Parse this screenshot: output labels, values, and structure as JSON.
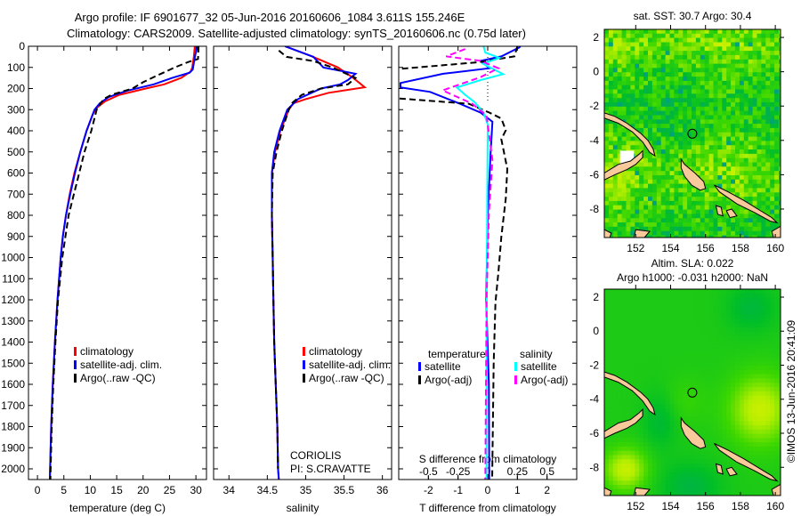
{
  "figure": {
    "title_line1": "Argo profile: IF 6901677_32 05-Jun-2016 20160606_1084 3.611S 155.246E",
    "title_line2": "Climatology: CARS2009. Satellite-adjusted climatology: synTS_20160606.nc (0.75d later)",
    "timestamp": "©IMOS 13-Jun-2016 20:41:09",
    "institution": "CORIOLIS",
    "pi": "PI: S.CRAVATTE"
  },
  "chart_data": [
    {
      "type": "line",
      "title": "",
      "xlabel": "temperature (deg C)",
      "ylabel": "",
      "xlim": [
        -1.7,
        32
      ],
      "ylim": [
        2050,
        0
      ],
      "xticks": [
        0,
        5,
        10,
        15,
        20,
        25,
        30
      ],
      "yticks": [
        0,
        100,
        200,
        300,
        400,
        500,
        600,
        700,
        800,
        900,
        1000,
        1100,
        1200,
        1300,
        1400,
        1500,
        1600,
        1700,
        1800,
        1900,
        2000
      ],
      "legend": [
        "climatology",
        "satellite-adj. clim.",
        "Argo(..raw -QC)"
      ],
      "series": [
        {
          "name": "climatology",
          "color": "#ff0000",
          "dash": "",
          "depth_value": [
            [
              0,
              29.8
            ],
            [
              50,
              29.6
            ],
            [
              100,
              29.3
            ],
            [
              120,
              29.0
            ],
            [
              150,
              27.2
            ],
            [
              180,
              24.0
            ],
            [
              200,
              20.5
            ],
            [
              230,
              15.5
            ],
            [
              260,
              12.8
            ],
            [
              290,
              11.3
            ],
            [
              320,
              10.5
            ],
            [
              400,
              9.3
            ],
            [
              500,
              8.1
            ],
            [
              600,
              7.0
            ],
            [
              700,
              6.1
            ],
            [
              800,
              5.4
            ],
            [
              900,
              4.8
            ],
            [
              1000,
              4.4
            ],
            [
              1200,
              3.8
            ],
            [
              1400,
              3.3
            ],
            [
              1600,
              2.9
            ],
            [
              1800,
              2.6
            ],
            [
              2000,
              2.4
            ],
            [
              2050,
              2.35
            ]
          ]
        },
        {
          "name": "satellite-adj. clim.",
          "color": "#0000ff",
          "dash": "",
          "depth_value": [
            [
              0,
              30.3
            ],
            [
              40,
              29.9
            ],
            [
              80,
              29.6
            ],
            [
              110,
              29.4
            ],
            [
              125,
              28.8
            ],
            [
              150,
              25.5
            ],
            [
              180,
              22.0
            ],
            [
              210,
              17.0
            ],
            [
              240,
              13.5
            ],
            [
              270,
              11.8
            ],
            [
              300,
              10.8
            ],
            [
              400,
              9.3
            ],
            [
              500,
              8.1
            ],
            [
              600,
              7.1
            ],
            [
              700,
              6.2
            ],
            [
              800,
              5.4
            ],
            [
              900,
              4.8
            ],
            [
              1000,
              4.4
            ],
            [
              1200,
              3.8
            ],
            [
              1400,
              3.3
            ],
            [
              1600,
              2.9
            ],
            [
              1800,
              2.6
            ],
            [
              2000,
              2.4
            ],
            [
              2050,
              2.35
            ]
          ]
        },
        {
          "name": "Argo(..raw -QC)",
          "color": "#000000",
          "dash": "7,4",
          "depth_value": [
            [
              0,
              30.5
            ],
            [
              60,
              30.4
            ],
            [
              75,
              28.5
            ],
            [
              100,
              26.0
            ],
            [
              140,
              22.5
            ],
            [
              170,
              20.0
            ],
            [
              200,
              18.0
            ],
            [
              230,
              14.0
            ],
            [
              250,
              12.5
            ],
            [
              300,
              11.2
            ],
            [
              400,
              10.2
            ],
            [
              500,
              8.9
            ],
            [
              600,
              7.9
            ],
            [
              700,
              6.9
            ],
            [
              800,
              5.9
            ],
            [
              900,
              5.3
            ],
            [
              1000,
              4.7
            ],
            [
              1200,
              3.9
            ],
            [
              1400,
              3.4
            ],
            [
              1600,
              3.0
            ],
            [
              1800,
              2.7
            ],
            [
              2000,
              2.5
            ],
            [
              2050,
              2.45
            ]
          ]
        }
      ]
    },
    {
      "type": "line",
      "title": "",
      "xlabel": "salinity",
      "xlim": [
        33.8,
        36.12
      ],
      "ylim": [
        2050,
        0
      ],
      "xticks": [
        34,
        34.5,
        35,
        35.5,
        36
      ],
      "yticks": [
        0,
        100,
        200,
        300,
        400,
        500,
        600,
        700,
        800,
        900,
        1000,
        1100,
        1200,
        1300,
        1400,
        1500,
        1600,
        1700,
        1800,
        1900,
        2000
      ],
      "legend": [
        "climatology",
        "satellite-adj. clim.",
        "Argo(..raw -QC)"
      ],
      "series": [
        {
          "name": "climatology",
          "color": "#ff0000",
          "dash": "",
          "depth_value": [
            [
              0,
              34.73
            ],
            [
              46,
              35.07
            ],
            [
              100,
              35.42
            ],
            [
              150,
              35.62
            ],
            [
              194,
              35.77
            ],
            [
              220,
              35.3
            ],
            [
              250,
              35.0
            ],
            [
              270,
              34.84
            ],
            [
              300,
              34.78
            ],
            [
              400,
              34.67
            ],
            [
              500,
              34.6
            ],
            [
              600,
              34.56
            ],
            [
              800,
              34.56
            ],
            [
              1000,
              34.57
            ],
            [
              1200,
              34.58
            ],
            [
              1400,
              34.59
            ],
            [
              1600,
              34.61
            ],
            [
              1800,
              34.63
            ],
            [
              2000,
              34.64
            ],
            [
              2050,
              34.65
            ]
          ]
        },
        {
          "name": "satellite-adj. clim.",
          "color": "#0000ff",
          "dash": "",
          "depth_value": [
            [
              0,
              34.73
            ],
            [
              50,
              35.1
            ],
            [
              100,
              35.23
            ],
            [
              130,
              35.65
            ],
            [
              160,
              35.55
            ],
            [
              180,
              35.45
            ],
            [
              200,
              35.2
            ],
            [
              250,
              34.9
            ],
            [
              300,
              34.76
            ],
            [
              400,
              34.66
            ],
            [
              500,
              34.59
            ],
            [
              600,
              34.56
            ],
            [
              800,
              34.56
            ],
            [
              1000,
              34.57
            ],
            [
              1200,
              34.58
            ],
            [
              1400,
              34.59
            ],
            [
              1600,
              34.61
            ],
            [
              1800,
              34.63
            ],
            [
              2000,
              34.64
            ],
            [
              2050,
              34.65
            ]
          ]
        },
        {
          "name": "Argo(..raw -QC)",
          "color": "#000000",
          "dash": "7,4",
          "depth_value": [
            [
              20,
              34.65
            ],
            [
              50,
              34.75
            ],
            [
              70,
              35.1
            ],
            [
              100,
              35.35
            ],
            [
              150,
              35.65
            ],
            [
              180,
              35.55
            ],
            [
              200,
              35.2
            ],
            [
              230,
              34.95
            ],
            [
              270,
              34.82
            ],
            [
              300,
              34.78
            ],
            [
              400,
              34.69
            ],
            [
              500,
              34.62
            ],
            [
              600,
              34.57
            ],
            [
              800,
              34.56
            ],
            [
              1000,
              34.57
            ],
            [
              1200,
              34.58
            ],
            [
              1400,
              34.59
            ],
            [
              1600,
              34.61
            ],
            [
              1800,
              34.63
            ],
            [
              2000,
              34.64
            ]
          ]
        }
      ]
    },
    {
      "type": "line",
      "xlabel": "T difference from climatology",
      "s_axis_label": "S difference from climatology",
      "xlim": [
        -3,
        3
      ],
      "s_xlim": [
        -0.75,
        0.75
      ],
      "ylim": [
        2050,
        0
      ],
      "xticks": [
        -2,
        -1,
        0,
        1,
        2
      ],
      "s_xticks": [
        -0.5,
        -0.25,
        0,
        0.25,
        0.5
      ],
      "yticks": [
        0,
        100,
        200,
        300,
        400,
        500,
        600,
        700,
        800,
        900,
        1000,
        1100,
        1200,
        1300,
        1400,
        1500,
        1600,
        1700,
        1800,
        1900,
        2000
      ],
      "legend_headers": [
        "temperature",
        "salinity"
      ],
      "legend": [
        "satellite",
        "Argo(-adj)",
        "satellite",
        "Argo(-adj)"
      ],
      "series": [
        {
          "name": "T satellite",
          "axis": "T",
          "color": "#0000ff",
          "dash": "",
          "depth_value": [
            [
              0,
              1.1
            ],
            [
              6,
              1.06
            ],
            [
              48,
              0.46
            ],
            [
              69,
              -0.24
            ],
            [
              104,
              0.06
            ],
            [
              130,
              -1.5
            ],
            [
              174,
              -2.94
            ],
            [
              195,
              -2.94
            ],
            [
              216,
              -1.94
            ],
            [
              272,
              -0.94
            ],
            [
              314,
              -0.24
            ],
            [
              357,
              0.16
            ],
            [
              500,
              0.1
            ],
            [
              800,
              0.0
            ],
            [
              1200,
              -0.05
            ],
            [
              1600,
              0.04
            ],
            [
              2050,
              0.05
            ]
          ]
        },
        {
          "name": "T Argo(-adj)",
          "axis": "T",
          "color": "#000000",
          "dash": "7,4",
          "depth_value": [
            [
              0,
              1.0
            ],
            [
              48,
              0.9
            ],
            [
              76,
              -0.34
            ],
            [
              111,
              -3.3
            ],
            [
              170,
              -3.5
            ],
            [
              244,
              -3.3
            ],
            [
              272,
              -0.64
            ],
            [
              314,
              0.06
            ],
            [
              342,
              0.46
            ],
            [
              398,
              0.61
            ],
            [
              440,
              0.46
            ],
            [
              580,
              0.66
            ],
            [
              720,
              0.61
            ],
            [
              902,
              0.46
            ],
            [
              1070,
              0.36
            ],
            [
              1211,
              0.26
            ],
            [
              1500,
              0.2
            ],
            [
              2050,
              0.15
            ]
          ]
        },
        {
          "name": "S satellite",
          "axis": "S",
          "color": "#00ffff",
          "dash": "",
          "depth_value": [
            [
              0,
              -0.035
            ],
            [
              30,
              -0.02
            ],
            [
              55,
              0.1
            ],
            [
              83,
              -0.04
            ],
            [
              132,
              0.13
            ],
            [
              160,
              -0.06
            ],
            [
              195,
              -0.26
            ],
            [
              230,
              -0.19
            ],
            [
              265,
              -0.11
            ],
            [
              314,
              -0.035
            ],
            [
              370,
              0.0
            ],
            [
              800,
              -0.005
            ],
            [
              1400,
              -0.01
            ],
            [
              2050,
              -0.01
            ]
          ]
        },
        {
          "name": "S Argo(-adj)",
          "axis": "S",
          "color": "#ff00ff",
          "dash": "7,4",
          "depth_value": [
            [
              13,
              -0.19
            ],
            [
              48,
              -0.35
            ],
            [
              69,
              -0.06
            ],
            [
              104,
              0.09
            ],
            [
              146,
              -0.06
            ],
            [
              209,
              -0.38
            ],
            [
              272,
              -0.13
            ],
            [
              328,
              -0.01
            ],
            [
              538,
              0.04
            ],
            [
              790,
              0.01
            ],
            [
              1200,
              -0.01
            ],
            [
              2050,
              -0.02
            ]
          ]
        }
      ]
    },
    {
      "type": "heatmap",
      "title": "sat. SST: 30.7 Argo: 30.4",
      "xlim": [
        150.2,
        160.3
      ],
      "ylim": [
        -9.66,
        2.47
      ],
      "xticks": [
        152,
        154,
        156,
        158,
        160
      ],
      "yticks": [
        2,
        0,
        -2,
        -4,
        -6,
        -8
      ],
      "float_position": [
        155.246,
        -3.611
      ]
    },
    {
      "type": "heatmap",
      "title_line1": "Altim. SLA: 0.022",
      "title_line2": "Argo h1000: -0.031 h2000: NaN",
      "xlim": [
        150.2,
        160.3
      ],
      "ylim": [
        -9.66,
        2.47
      ],
      "xticks": [
        152,
        154,
        156,
        158,
        160
      ],
      "yticks": [
        2,
        0,
        -2,
        -4,
        -6,
        -8
      ],
      "float_position": [
        155.246,
        -3.611
      ]
    }
  ]
}
